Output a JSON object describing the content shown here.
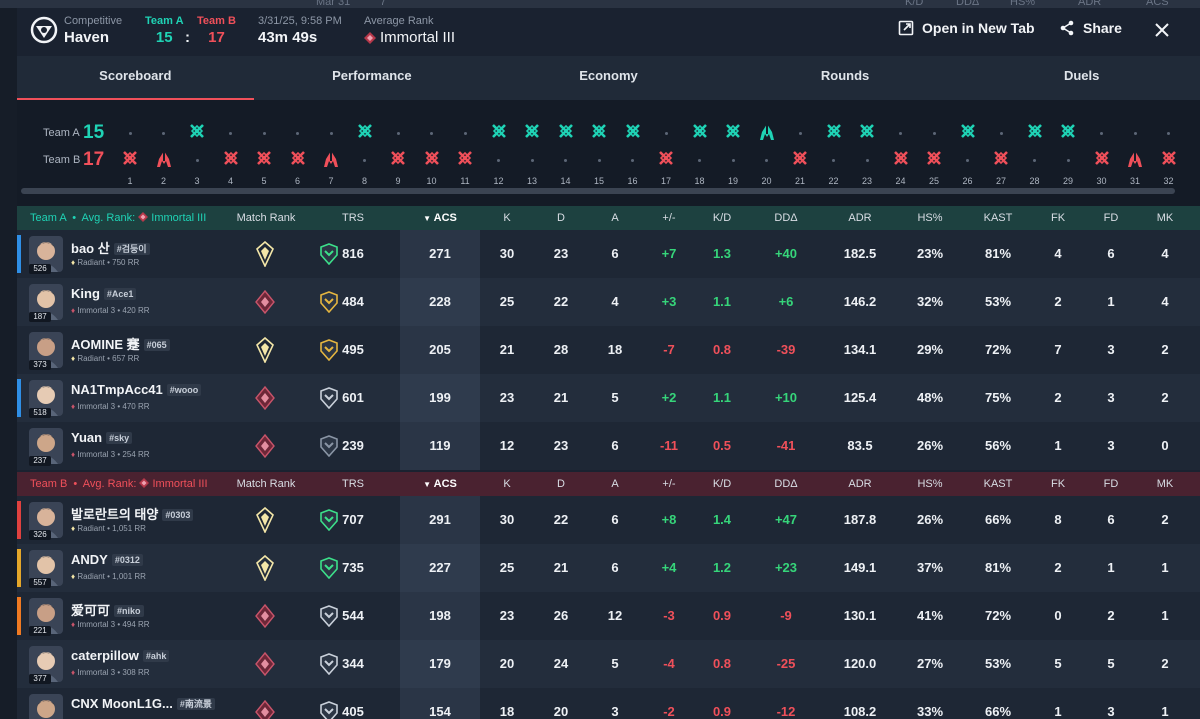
{
  "background_tab": {
    "date_label": "Mar 31",
    "k_value": "7",
    "kd": "K/D",
    "dd": "DDΔ",
    "hs": "HS%",
    "adr": "ADR",
    "acs": "ACS"
  },
  "header": {
    "mode_label": "Competitive",
    "map": "Haven",
    "team_a_label": "Team A",
    "team_a_score": "15",
    "separator": ":",
    "team_b_label": "Team B",
    "team_b_score": "17",
    "datetime": "3/31/25, 9:58 PM",
    "duration": "43m 49s",
    "avg_rank_label": "Average Rank",
    "avg_rank": "Immortal III",
    "open_new_tab": "Open in New Tab",
    "share": "Share"
  },
  "tabs": [
    "Scoreboard",
    "Performance",
    "Economy",
    "Rounds",
    "Duels"
  ],
  "timeline": {
    "team_a_label": "Team A",
    "team_a_score": "15",
    "team_b_label": "Team B",
    "team_b_score": "17",
    "rounds": [
      {
        "n": "1",
        "w": "B",
        "t": "elim"
      },
      {
        "n": "2",
        "w": "B",
        "t": "spike"
      },
      {
        "n": "3",
        "w": "A",
        "t": "elim"
      },
      {
        "n": "4",
        "w": "B",
        "t": "elim"
      },
      {
        "n": "5",
        "w": "B",
        "t": "elim"
      },
      {
        "n": "6",
        "w": "B",
        "t": "elim"
      },
      {
        "n": "7",
        "w": "B",
        "t": "spike"
      },
      {
        "n": "8",
        "w": "A",
        "t": "elim"
      },
      {
        "n": "9",
        "w": "B",
        "t": "elim"
      },
      {
        "n": "10",
        "w": "B",
        "t": "elim"
      },
      {
        "n": "11",
        "w": "B",
        "t": "elim"
      },
      {
        "n": "12",
        "w": "A",
        "t": "elim"
      },
      {
        "n": "13",
        "w": "A",
        "t": "elim"
      },
      {
        "n": "14",
        "w": "A",
        "t": "elim"
      },
      {
        "n": "15",
        "w": "A",
        "t": "elim"
      },
      {
        "n": "16",
        "w": "A",
        "t": "elim"
      },
      {
        "n": "17",
        "w": "B",
        "t": "elim"
      },
      {
        "n": "18",
        "w": "A",
        "t": "elim"
      },
      {
        "n": "19",
        "w": "A",
        "t": "elim"
      },
      {
        "n": "20",
        "w": "A",
        "t": "spike"
      },
      {
        "n": "21",
        "w": "B",
        "t": "elim"
      },
      {
        "n": "22",
        "w": "A",
        "t": "elim"
      },
      {
        "n": "23",
        "w": "A",
        "t": "elim"
      },
      {
        "n": "24",
        "w": "B",
        "t": "elim"
      },
      {
        "n": "25",
        "w": "B",
        "t": "elim"
      },
      {
        "n": "26",
        "w": "A",
        "t": "elim"
      },
      {
        "n": "27",
        "w": "B",
        "t": "elim"
      },
      {
        "n": "28",
        "w": "A",
        "t": "elim"
      },
      {
        "n": "29",
        "w": "A",
        "t": "elim"
      },
      {
        "n": "30",
        "w": "B",
        "t": "elim"
      },
      {
        "n": "31",
        "w": "B",
        "t": "spike"
      },
      {
        "n": "32",
        "w": "B",
        "t": "elim"
      }
    ]
  },
  "columns": [
    "Match Rank",
    "TRS",
    "ACS",
    "K",
    "D",
    "A",
    "+/-",
    "K/D",
    "DDΔ",
    "ADR",
    "HS%",
    "KAST",
    "FK",
    "FD",
    "MK"
  ],
  "team_a": {
    "label": "Team A",
    "avg_label": "Avg. Rank:",
    "avg_rank": "Immortal III",
    "players": [
      {
        "name": "bao 산",
        "tag": "#검둥이",
        "level": "526",
        "rank": "Radiant",
        "rr": "750 RR",
        "match_rank": "radiant",
        "trs_icon": "green",
        "trs": "816",
        "acs": "271",
        "k": "30",
        "d": "23",
        "a": "6",
        "pm": "+7",
        "kd": "1.3",
        "dd": "+40",
        "adr": "182.5",
        "hs": "23%",
        "kast": "81%",
        "fk": "4",
        "fd": "6",
        "mk": "4",
        "bar": "#2f8fe6"
      },
      {
        "name": "King",
        "tag": "#Ace1",
        "level": "187",
        "rank": "Immortal 3",
        "rr": "420 RR",
        "match_rank": "immortal",
        "trs_icon": "gold",
        "trs": "484",
        "acs": "228",
        "k": "25",
        "d": "22",
        "a": "4",
        "pm": "+3",
        "kd": "1.1",
        "dd": "+6",
        "adr": "146.2",
        "hs": "32%",
        "kast": "53%",
        "fk": "2",
        "fd": "1",
        "mk": "4",
        "bar": ""
      },
      {
        "name": "AOMINE 蹇",
        "tag": "#065",
        "level": "373",
        "rank": "Radiant",
        "rr": "657 RR",
        "match_rank": "radiant",
        "trs_icon": "gold",
        "trs": "495",
        "acs": "205",
        "k": "21",
        "d": "28",
        "a": "18",
        "pm": "-7",
        "kd": "0.8",
        "dd": "-39",
        "adr": "134.1",
        "hs": "29%",
        "kast": "72%",
        "fk": "7",
        "fd": "3",
        "mk": "2",
        "bar": ""
      },
      {
        "name": "NA1TmpAcc41",
        "tag": "#wooo",
        "level": "518",
        "rank": "Immortal 3",
        "rr": "470 RR",
        "match_rank": "immortal",
        "trs_icon": "silver",
        "trs": "601",
        "acs": "199",
        "k": "23",
        "d": "21",
        "a": "5",
        "pm": "+2",
        "kd": "1.1",
        "dd": "+10",
        "adr": "125.4",
        "hs": "48%",
        "kast": "75%",
        "fk": "2",
        "fd": "3",
        "mk": "2",
        "bar": "#2f8fe6"
      },
      {
        "name": "Yuan",
        "tag": "#sky",
        "level": "237",
        "rank": "Immortal 3",
        "rr": "254 RR",
        "match_rank": "immortal",
        "trs_icon": "dark",
        "trs": "239",
        "acs": "119",
        "k": "12",
        "d": "23",
        "a": "6",
        "pm": "-11",
        "kd": "0.5",
        "dd": "-41",
        "adr": "83.5",
        "hs": "26%",
        "kast": "56%",
        "fk": "1",
        "fd": "3",
        "mk": "0",
        "bar": ""
      }
    ]
  },
  "team_b": {
    "label": "Team B",
    "avg_label": "Avg. Rank:",
    "avg_rank": "Immortal III",
    "players": [
      {
        "name": "발로란트의 태양",
        "tag": "#0303",
        "level": "326",
        "rank": "Radiant",
        "rr": "1,051 RR",
        "match_rank": "radiant",
        "trs_icon": "green",
        "trs": "707",
        "acs": "291",
        "k": "30",
        "d": "22",
        "a": "6",
        "pm": "+8",
        "kd": "1.4",
        "dd": "+47",
        "adr": "187.8",
        "hs": "26%",
        "kast": "66%",
        "fk": "8",
        "fd": "6",
        "mk": "2",
        "bar": "#e0413f"
      },
      {
        "name": "ANDY",
        "tag": "#0312",
        "level": "557",
        "rank": "Radiant",
        "rr": "1,001 RR",
        "match_rank": "radiant",
        "trs_icon": "green",
        "trs": "735",
        "acs": "227",
        "k": "25",
        "d": "21",
        "a": "6",
        "pm": "+4",
        "kd": "1.2",
        "dd": "+23",
        "adr": "149.1",
        "hs": "37%",
        "kast": "81%",
        "fk": "2",
        "fd": "1",
        "mk": "1",
        "bar": "#e5a72a"
      },
      {
        "name": "爱可可",
        "tag": "#niko",
        "level": "221",
        "rank": "Immortal 3",
        "rr": "494 RR",
        "match_rank": "immortal",
        "trs_icon": "silver",
        "trs": "544",
        "acs": "198",
        "k": "23",
        "d": "26",
        "a": "12",
        "pm": "-3",
        "kd": "0.9",
        "dd": "-9",
        "adr": "130.1",
        "hs": "41%",
        "kast": "72%",
        "fk": "0",
        "fd": "2",
        "mk": "1",
        "bar": "#f07a22"
      },
      {
        "name": "caterpillow",
        "tag": "#ahk",
        "level": "377",
        "rank": "Immortal 3",
        "rr": "308 RR",
        "match_rank": "immortal",
        "trs_icon": "silver",
        "trs": "344",
        "acs": "179",
        "k": "20",
        "d": "24",
        "a": "5",
        "pm": "-4",
        "kd": "0.8",
        "dd": "-25",
        "adr": "120.0",
        "hs": "27%",
        "kast": "53%",
        "fk": "5",
        "fd": "5",
        "mk": "2",
        "bar": ""
      },
      {
        "name": "CNX MoonL1G...",
        "tag": "#南流景",
        "level": "",
        "rank": "",
        "rr": "",
        "match_rank": "immortal",
        "trs_icon": "silver",
        "trs": "405",
        "acs": "154",
        "k": "18",
        "d": "20",
        "a": "3",
        "pm": "-2",
        "kd": "0.9",
        "dd": "-12",
        "adr": "108.2",
        "hs": "33%",
        "kast": "66%",
        "fk": "1",
        "fd": "3",
        "mk": "1",
        "bar": ""
      }
    ]
  },
  "colors": {
    "team_a": "#1fd3b5",
    "team_b": "#f0505a",
    "positive": "#36d57a",
    "negative": "#f0505a"
  }
}
